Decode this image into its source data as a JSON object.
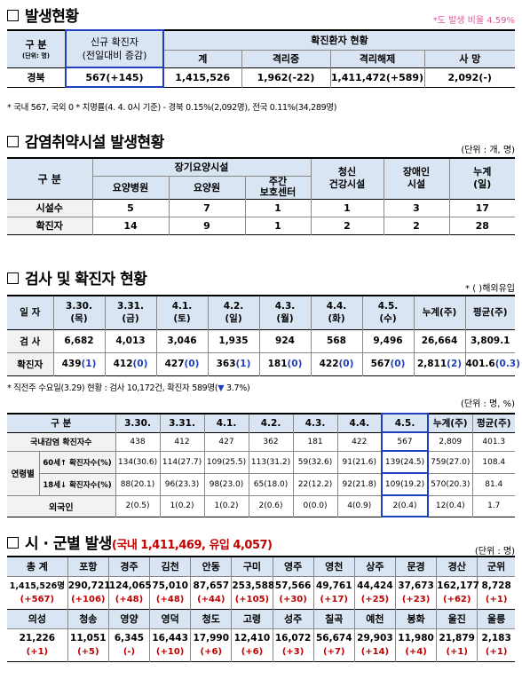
{
  "s1": {
    "title": "발생현황",
    "rate_note": "*도 발생 비율 4.59%",
    "col_group": "구 분",
    "col_group_sub": "(단위: 명)",
    "col_new": "신규 확진자",
    "col_new_sub": "(전일대비 증감)",
    "col_confirmed_group": "확진환자 현황",
    "col_total": "계",
    "col_isolating": "격리중",
    "col_released": "격리해제",
    "col_death": "사 망",
    "row_label": "경북",
    "new_val": "567(+145)",
    "total_val": "1,415,526",
    "isolating_val": "1,962(-22)",
    "released_val": "1,411,472(+589)",
    "death_val": "2,092(-)",
    "footnote": "* 국내 567, 국외 0   * 치명률(4. 4. 0시 기준) - 경북 0.15%(2,092명), 전국 0.11%(34,289명)"
  },
  "s2": {
    "title": "감염취약시설 발생현황",
    "unit": "(단위 : 개, 명)",
    "col_group": "구 분",
    "col_longterm": "장기요양시설",
    "col_hospital": "요양병원",
    "col_nursing": "요양원",
    "col_daycare": "주간\n보호센터",
    "col_youth": "청신\n건강시설",
    "col_disabled": "장애인\n시설",
    "col_cumul": "누계\n(일)",
    "rows": [
      {
        "label": "시설수",
        "vals": [
          "5",
          "7",
          "1",
          "1",
          "3",
          "17"
        ]
      },
      {
        "label": "확진자",
        "vals": [
          "14",
          "9",
          "1",
          "2",
          "2",
          "28"
        ]
      }
    ]
  },
  "s3": {
    "title": "검사 및 확진자 현황",
    "unit": "* ( )해외유입",
    "col_date": "일 자",
    "dates": [
      {
        "d": "3.30.",
        "w": "(목)"
      },
      {
        "d": "3.31.",
        "w": "(금)"
      },
      {
        "d": "4.1.",
        "w": "(토)"
      },
      {
        "d": "4.2.",
        "w": "(일)"
      },
      {
        "d": "4.3.",
        "w": "(월)"
      },
      {
        "d": "4.4.",
        "w": "(화)"
      },
      {
        "d": "4.5.",
        "w": "(수)"
      }
    ],
    "col_cumul": "누계(주)",
    "col_avg": "평균(주)",
    "row_test": "검 사",
    "tests": [
      "6,682",
      "4,013",
      "3,046",
      "1,935",
      "924",
      "568",
      "9,496",
      "26,664",
      "3,809.1"
    ],
    "row_conf": "확진자",
    "confirmed": [
      {
        "v": "439",
        "o": "(1)"
      },
      {
        "v": "412",
        "o": "(0)"
      },
      {
        "v": "427",
        "o": "(0)"
      },
      {
        "v": "363",
        "o": "(1)"
      },
      {
        "v": "181",
        "o": "(0)"
      },
      {
        "v": "422",
        "o": "(0)"
      },
      {
        "v": "567",
        "o": "(0)"
      },
      {
        "v": "2,811",
        "o": "(2)"
      },
      {
        "v": "401.6",
        "o": "(0.3)"
      }
    ],
    "note_prefix": "* 직전주 수요일(3.29) 현황 : 검사 10,172건, 확진자 589명(",
    "note_arrow": "▼",
    "note_suffix": " 3.7%)"
  },
  "s4": {
    "unit": "(단위 : 명, %)",
    "col_group": "구 분",
    "dates": [
      "3.30.",
      "3.31.",
      "4.1.",
      "4.2.",
      "4.3.",
      "4.4.",
      "4.5."
    ],
    "col_cumul": "누계(주)",
    "col_avg": "평균(주)",
    "row_domestic": "국내감염 확진자수",
    "domestic": [
      "438",
      "412",
      "427",
      "362",
      "181",
      "422",
      "567",
      "2,809",
      "401.3"
    ],
    "age_label": "연령별",
    "row_60": "60세↑ 확진자수(%)",
    "age60": [
      "134(30.6)",
      "114(27.7)",
      "109(25.5)",
      "113(31.2)",
      "59(32.6)",
      "91(21.6)",
      "139(24.5)",
      "759(27.0)",
      "108.4"
    ],
    "row_18": "18세↓ 확진자수(%)",
    "age18": [
      "88(20.1)",
      "96(23.3)",
      "98(23.0)",
      "65(18.0)",
      "22(12.2)",
      "92(21.8)",
      "109(19.2)",
      "570(20.3)",
      "81.4"
    ],
    "row_foreign": "외국인",
    "foreign": [
      "2(0.5)",
      "1(0.2)",
      "1(0.2)",
      "2(0.6)",
      "0(0.0)",
      "4(0.9)",
      "2(0.4)",
      "12(0.4)",
      "1.7"
    ]
  },
  "s5": {
    "title": "시 · 군별 발생",
    "sub_open": "(국내 1,411,469, 유입 4,057)",
    "unit": "(단위 : 명)",
    "row1_heads": [
      "총 계",
      "포항",
      "경주",
      "김천",
      "안동",
      "구미",
      "영주",
      "영천",
      "상주",
      "문경",
      "경산",
      "군위"
    ],
    "row1_vals": [
      "1,415,526명",
      "290,721",
      "124,065",
      "75,010",
      "87,657",
      "253,588",
      "57,566",
      "49,761",
      "44,424",
      "37,673",
      "162,177",
      "8,728"
    ],
    "row1_incs": [
      "(+567)",
      "(+106)",
      "(+48)",
      "(+48)",
      "(+44)",
      "(+105)",
      "(+30)",
      "(+17)",
      "(+25)",
      "(+23)",
      "(+62)",
      "(+1)"
    ],
    "row2_heads": [
      "의성",
      "청송",
      "영양",
      "영덕",
      "청도",
      "고령",
      "성주",
      "칠곡",
      "예천",
      "봉화",
      "울진",
      "울릉"
    ],
    "row2_vals": [
      "21,226",
      "11,051",
      "6,345",
      "16,443",
      "17,990",
      "12,410",
      "16,072",
      "56,674",
      "29,903",
      "11,980",
      "21,879",
      "2,183"
    ],
    "row2_incs": [
      "(+1)",
      "(+5)",
      "(-)",
      "(+10)",
      "(+6)",
      "(+6)",
      "(+3)",
      "(+7)",
      "(+14)",
      "(+4)",
      "(+1)",
      "(+1)"
    ]
  }
}
